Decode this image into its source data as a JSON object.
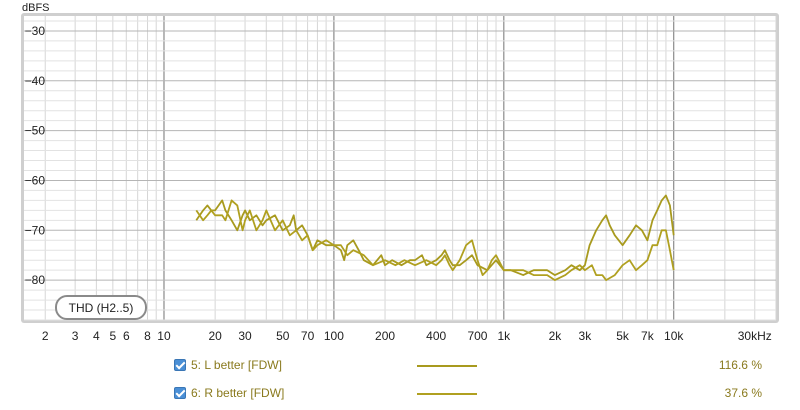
{
  "chart_data": {
    "type": "line",
    "title": "",
    "ylabel": "dBFS",
    "xlabel": "",
    "x_scale": "log",
    "xlim": [
      1.5,
      40000
    ],
    "ylim": [
      -88,
      -27
    ],
    "grid": true,
    "annotation": "THD (H2..5)",
    "x_ticks": [
      {
        "value": 2,
        "label": "2"
      },
      {
        "value": 3,
        "label": "3"
      },
      {
        "value": 4,
        "label": "4"
      },
      {
        "value": 5,
        "label": "5"
      },
      {
        "value": 6,
        "label": "6"
      },
      {
        "value": 8,
        "label": "8"
      },
      {
        "value": 10,
        "label": "10"
      },
      {
        "value": 20,
        "label": "20"
      },
      {
        "value": 30,
        "label": "30"
      },
      {
        "value": 50,
        "label": "50"
      },
      {
        "value": 70,
        "label": "70"
      },
      {
        "value": 100,
        "label": "100"
      },
      {
        "value": 200,
        "label": "200"
      },
      {
        "value": 400,
        "label": "400"
      },
      {
        "value": 700,
        "label": "700"
      },
      {
        "value": 1000,
        "label": "1k"
      },
      {
        "value": 2000,
        "label": "2k"
      },
      {
        "value": 3000,
        "label": "3k"
      },
      {
        "value": 5000,
        "label": "5k"
      },
      {
        "value": 7000,
        "label": "7k"
      },
      {
        "value": 10000,
        "label": "10k"
      },
      {
        "value": 30000,
        "label": "30kHz"
      }
    ],
    "y_ticks": [
      {
        "value": -30,
        "label": "−30"
      },
      {
        "value": -40,
        "label": "−40"
      },
      {
        "value": -50,
        "label": "−50"
      },
      {
        "value": -60,
        "label": "−60"
      },
      {
        "value": -70,
        "label": "−70"
      },
      {
        "value": -80,
        "label": "−80"
      }
    ],
    "series": [
      {
        "name": "5: L better [FDW]",
        "value": "116.6 %",
        "color": "#a89a1e",
        "x": [
          15.5,
          17,
          18,
          19,
          20,
          22,
          23,
          25,
          27,
          29,
          30,
          32,
          35,
          38,
          40,
          45,
          50,
          55,
          58,
          60,
          65,
          70,
          75,
          80,
          90,
          100,
          110,
          115,
          120,
          130,
          140,
          150,
          170,
          190,
          200,
          220,
          250,
          280,
          300,
          330,
          350,
          400,
          430,
          450,
          480,
          500,
          550,
          600,
          650,
          700,
          800,
          900,
          1000,
          1100,
          1300,
          1500,
          1800,
          2000,
          2300,
          2500,
          2800,
          3000,
          3200,
          3500,
          3800,
          4000,
          4200,
          4500,
          5000,
          5500,
          6000,
          6500,
          7000,
          7500,
          8000,
          8500,
          9000,
          9500,
          10000
        ],
        "y": [
          -68,
          -66,
          -65,
          -66,
          -66,
          -64,
          -66,
          -68,
          -70,
          -67,
          -66,
          -68,
          -67,
          -69,
          -68,
          -67,
          -70,
          -69,
          -67,
          -70,
          -69,
          -71,
          -74,
          -72,
          -73,
          -73,
          -74,
          -76,
          -73,
          -72,
          -74,
          -76,
          -77,
          -75,
          -77,
          -76,
          -77,
          -76,
          -76,
          -75,
          -77,
          -76,
          -75,
          -74,
          -76,
          -77,
          -77,
          -76,
          -75,
          -77,
          -78,
          -76,
          -78,
          -78,
          -79,
          -78,
          -78,
          -79,
          -78,
          -77,
          -78,
          -77,
          -73,
          -70,
          -68,
          -67,
          -69,
          -71,
          -73,
          -71,
          -69,
          -70,
          -72,
          -68,
          -66,
          -64,
          -63,
          -65,
          -71
        ]
      },
      {
        "name": "6: R better [FDW]",
        "value": "37.6 %",
        "color": "#b0a020",
        "x": [
          15.5,
          17,
          18,
          19,
          20,
          22,
          23,
          25,
          27,
          29,
          30,
          32,
          35,
          38,
          40,
          45,
          50,
          55,
          60,
          65,
          70,
          75,
          80,
          90,
          100,
          110,
          120,
          130,
          150,
          170,
          200,
          230,
          260,
          300,
          350,
          400,
          430,
          450,
          480,
          500,
          550,
          600,
          650,
          700,
          750,
          800,
          850,
          900,
          1000,
          1100,
          1300,
          1500,
          1800,
          2000,
          2300,
          2500,
          2800,
          3000,
          3300,
          3500,
          3800,
          4000,
          4500,
          5000,
          5500,
          6000,
          6500,
          7000,
          7500,
          8000,
          8500,
          9000,
          9500,
          10000
        ],
        "y": [
          -66,
          -68,
          -67,
          -66,
          -67,
          -67,
          -68,
          -64,
          -65,
          -70,
          -68,
          -66,
          -70,
          -68,
          -66,
          -70,
          -68,
          -71,
          -70,
          -72,
          -71,
          -74,
          -73,
          -72,
          -73,
          -73,
          -75,
          -74,
          -75,
          -77,
          -76,
          -77,
          -76,
          -77,
          -76,
          -77,
          -76,
          -75,
          -77,
          -78,
          -76,
          -73,
          -72,
          -76,
          -79,
          -78,
          -76,
          -75,
          -78,
          -78,
          -78,
          -79,
          -79,
          -80,
          -79,
          -78,
          -77,
          -78,
          -77,
          -79,
          -79,
          -80,
          -79,
          -77,
          -76,
          -78,
          -77,
          -76,
          -73,
          -73,
          -70,
          -70,
          -74,
          -78
        ]
      }
    ]
  }
}
